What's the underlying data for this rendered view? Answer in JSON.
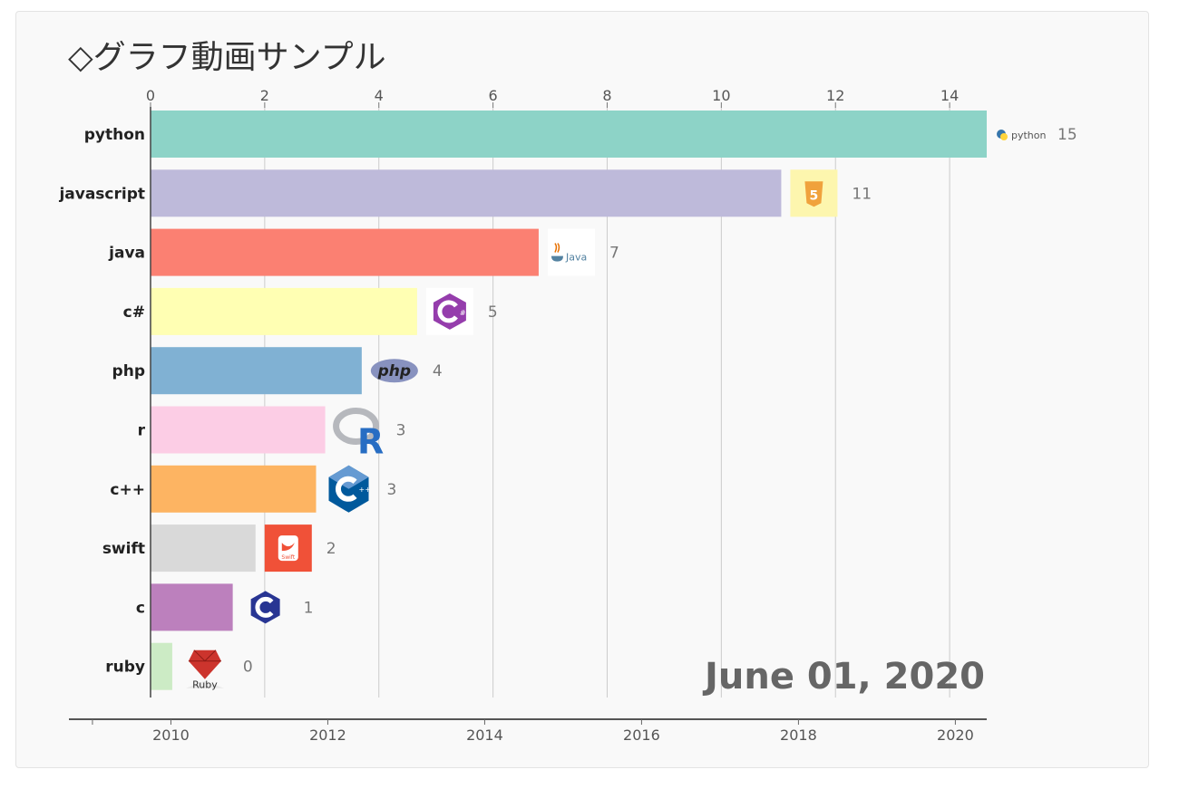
{
  "title": "◇グラフ動画サンプル",
  "chart_data": {
    "type": "bar",
    "orientation": "horizontal",
    "categories": [
      "python",
      "javascript",
      "java",
      "c#",
      "php",
      "r",
      "c++",
      "swift",
      "c",
      "ruby"
    ],
    "values": [
      14.65,
      11.05,
      6.8,
      4.67,
      3.7,
      3.06,
      2.9,
      1.84,
      1.44,
      0.38
    ],
    "value_labels": [
      "15",
      "11",
      "7",
      "5",
      "4",
      "3",
      "3",
      "2",
      "1",
      "0"
    ],
    "colors": [
      "#8dd3c7",
      "#bebada",
      "#fb8072",
      "#ffffb3",
      "#80b1d3",
      "#fccde5",
      "#fdb462",
      "#d9d9d9",
      "#bc80bd",
      "#ccebc5"
    ],
    "logos": [
      "python-logo",
      "javascript-logo",
      "java-logo",
      "csharp-logo",
      "php-logo",
      "r-logo",
      "cplusplus-logo",
      "swift-logo",
      "c-logo",
      "ruby-logo"
    ],
    "xlim": [
      0,
      14.65
    ],
    "xticks": [
      0,
      2,
      4,
      6,
      8,
      10,
      12,
      14
    ],
    "grid": true,
    "date_label": "June 01, 2020",
    "timeline": {
      "range": [
        2008.7,
        2020.4
      ],
      "ticks": [
        2010,
        2012,
        2014,
        2016,
        2018,
        2020
      ]
    }
  }
}
